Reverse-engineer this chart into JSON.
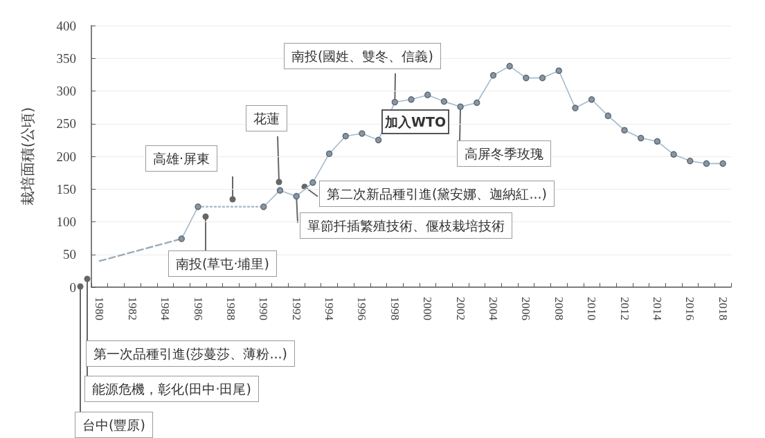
{
  "chart_data": {
    "type": "line",
    "ylabel": "栽培面積(公頃)",
    "categories": [
      "1980",
      null,
      "1982",
      null,
      "1984",
      null,
      "1986",
      null,
      "1988",
      null,
      "1990",
      null,
      "1992",
      null,
      "1994",
      null,
      "1996",
      null,
      "1998",
      null,
      "2000",
      null,
      "2002",
      null,
      "2004",
      null,
      "2006",
      null,
      "2008",
      null,
      "2010",
      null,
      "2012",
      null,
      "2014",
      null,
      "2016",
      null,
      "2018"
    ],
    "series": [
      {
        "color": "#9aa9b8",
        "line_style": "dashed",
        "marker": "none",
        "values": [
          40,
          null,
          null,
          null,
          null,
          74,
          null,
          null,
          null,
          null,
          null,
          null,
          null,
          null,
          null,
          null,
          null,
          null,
          null,
          null,
          null,
          null,
          null,
          null,
          null,
          null,
          null,
          null,
          null,
          null,
          null,
          null,
          null,
          null,
          null,
          null,
          null,
          null,
          null
        ]
      },
      {
        "color": "#a9bccc",
        "line_style": "dotted",
        "marker": "none",
        "values": [
          null,
          null,
          null,
          null,
          null,
          null,
          123,
          null,
          null,
          null,
          123,
          null,
          null,
          null,
          null,
          null,
          null,
          null,
          null,
          null,
          null,
          null,
          null,
          null,
          null,
          null,
          null,
          null,
          null,
          null,
          null,
          null,
          null,
          null,
          null,
          null,
          null,
          null,
          null
        ]
      },
      {
        "color": "#a3b9cb",
        "line_style": "solid",
        "marker": "circle",
        "values": [
          null,
          null,
          null,
          null,
          null,
          74,
          123,
          null,
          null,
          null,
          123,
          148,
          139,
          160,
          204,
          231,
          235,
          225,
          283,
          287,
          294,
          284,
          276,
          282,
          324,
          338,
          320,
          320,
          331,
          274,
          287,
          262,
          240,
          228,
          223,
          203,
          193,
          189,
          189
        ]
      }
    ],
    "ylim": [
      0,
      400
    ],
    "yticks": [
      0,
      50,
      100,
      150,
      200,
      250,
      300,
      350,
      400
    ],
    "grid": "y",
    "annotations": [
      "台中(豐原)",
      "能源危機，彰化(田中·田尾)",
      "第一次品種引進(莎蔓莎、薄粉...)",
      "高雄·屏東",
      "南投(草屯·埔里)",
      "花蓮",
      {
        "text": "單節扦插繁殖技術、偃枝栽培技術",
        "x": "1992",
        "y": 139
      },
      "第二次新品種引進(黛安娜、迦納紅...)",
      {
        "text": "南投(國姓、雙冬、信義)",
        "x": "1998",
        "y": 283
      },
      "加入WTO",
      {
        "text": "高屏冬季玫瑰",
        "x": "2002",
        "y": 276
      }
    ]
  }
}
